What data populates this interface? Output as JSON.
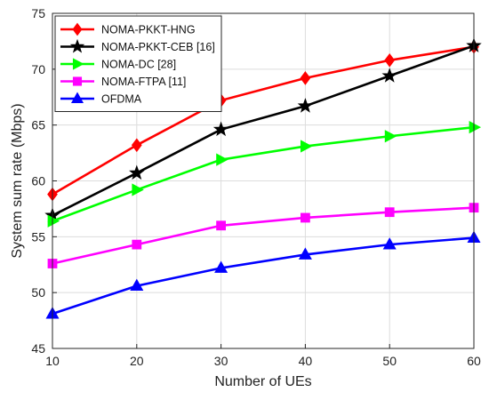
{
  "chart_data": {
    "type": "line",
    "title": "",
    "xlabel": "Number of UEs",
    "ylabel": "System sum rate (Mbps)",
    "x": [
      10,
      20,
      30,
      40,
      50,
      60
    ],
    "xlim": [
      10,
      60
    ],
    "ylim": [
      45,
      75
    ],
    "xticks": [
      10,
      20,
      30,
      40,
      50,
      60
    ],
    "yticks": [
      45,
      50,
      55,
      60,
      65,
      70,
      75
    ],
    "grid": true,
    "legend_position": "top-left",
    "series": [
      {
        "name": "NOMA-PKKT-HNG",
        "color": "#ff0000",
        "marker": "diamond",
        "values": [
          58.8,
          63.2,
          67.2,
          69.2,
          70.8,
          72.0
        ]
      },
      {
        "name": "NOMA-PKKT-CEB [16]",
        "color": "#000000",
        "marker": "star",
        "values": [
          56.9,
          60.7,
          64.6,
          66.7,
          69.4,
          72.1
        ]
      },
      {
        "name": "NOMA-DC [28]",
        "color": "#00ff00",
        "marker": "triangle-right",
        "values": [
          56.4,
          59.2,
          61.9,
          63.1,
          64.0,
          64.8
        ]
      },
      {
        "name": "NOMA-FTPA [11]",
        "color": "#ff00ff",
        "marker": "square",
        "values": [
          52.6,
          54.3,
          56.0,
          56.7,
          57.2,
          57.6
        ]
      },
      {
        "name": "OFDMA",
        "color": "#0000ff",
        "marker": "triangle-up",
        "values": [
          48.1,
          50.6,
          52.2,
          53.4,
          54.3,
          54.9
        ]
      }
    ]
  }
}
